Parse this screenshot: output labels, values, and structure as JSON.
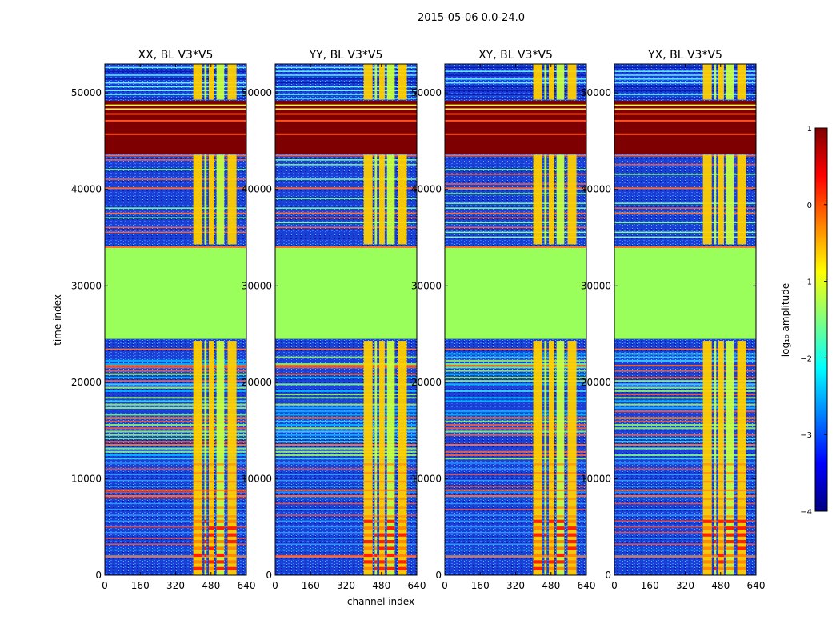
{
  "figure": {
    "suptitle": "2015-05-06 0.0-24.0",
    "xlabel": "channel index",
    "ylabel": "time index"
  },
  "colors": {
    "cmap": [
      "#00007f",
      "#0000ff",
      "#0080ff",
      "#00ffff",
      "#80ff80",
      "#ffff00",
      "#ff8000",
      "#ff0000",
      "#7f0000"
    ],
    "background_green": "#9aff5a",
    "deep_blue": "#1a3cd0",
    "band_red": "#7f0000"
  },
  "chart_data": [
    {
      "type": "heatmap",
      "title": "XX, BL V3*V5",
      "xlim": [
        0,
        640
      ],
      "ylim": [
        0,
        53000
      ],
      "xticks": [
        0,
        160,
        320,
        480,
        640
      ],
      "yticks": [
        0,
        10000,
        20000,
        30000,
        40000,
        50000
      ],
      "ytick_labels": [
        "0",
        "10000",
        "20000",
        "30000",
        "40000",
        "50000"
      ],
      "bright_channel_columns": [
        [
          400,
          440
        ],
        [
          450,
          460
        ],
        [
          470,
          495
        ],
        [
          505,
          540
        ],
        [
          555,
          595
        ]
      ]
    },
    {
      "type": "heatmap",
      "title": "YY, BL V3*V5",
      "xlim": [
        0,
        640
      ],
      "ylim": [
        0,
        53000
      ],
      "xticks": [
        0,
        160,
        320,
        480,
        640
      ],
      "yticks": [
        0,
        10000,
        20000,
        30000,
        40000,
        50000
      ],
      "ytick_labels": [
        "0",
        "10000",
        "20000",
        "30000",
        "40000",
        "50000"
      ],
      "bright_channel_columns": [
        [
          400,
          440
        ],
        [
          450,
          460
        ],
        [
          470,
          495
        ],
        [
          505,
          540
        ],
        [
          555,
          595
        ]
      ]
    },
    {
      "type": "heatmap",
      "title": "XY, BL V3*V5",
      "xlim": [
        0,
        640
      ],
      "ylim": [
        0,
        53000
      ],
      "xticks": [
        0,
        160,
        320,
        480,
        640
      ],
      "yticks": [
        0,
        10000,
        20000,
        30000,
        40000,
        50000
      ],
      "ytick_labels": [
        "0",
        "10000",
        "20000",
        "30000",
        "40000",
        "50000"
      ],
      "bright_channel_columns": [
        [
          400,
          440
        ],
        [
          450,
          460
        ],
        [
          470,
          495
        ],
        [
          505,
          540
        ],
        [
          555,
          595
        ]
      ]
    },
    {
      "type": "heatmap",
      "title": "YX, BL V3*V5",
      "xlim": [
        0,
        640
      ],
      "ylim": [
        0,
        53000
      ],
      "xticks": [
        0,
        160,
        320,
        480,
        640
      ],
      "yticks": [
        0,
        10000,
        20000,
        30000,
        40000,
        50000
      ],
      "ytick_labels": [
        "0",
        "10000",
        "20000",
        "30000",
        "40000",
        "50000"
      ],
      "bright_channel_columns": [
        [
          400,
          440
        ],
        [
          450,
          460
        ],
        [
          470,
          495
        ],
        [
          505,
          540
        ],
        [
          555,
          595
        ]
      ]
    }
  ],
  "time_bands": [
    {
      "from": 0,
      "to": 2000,
      "level": "low"
    },
    {
      "from": 8200,
      "to": 8600,
      "level": "orange"
    },
    {
      "from": 12000,
      "to": 23000,
      "level": "striped"
    },
    {
      "from": 24500,
      "to": 34000,
      "level": "flat"
    },
    {
      "from": 34000,
      "to": 43500,
      "level": "noisy"
    },
    {
      "from": 43700,
      "to": 49200,
      "level": "saturated"
    }
  ],
  "colorbar": {
    "label": "log₁₀ amplitude",
    "min": -4,
    "max": 1,
    "ticks": [
      1,
      0,
      -1,
      -2,
      -3,
      -4
    ],
    "tick_labels": [
      "1",
      "0",
      "−1",
      "−2",
      "−3",
      "−4"
    ]
  }
}
